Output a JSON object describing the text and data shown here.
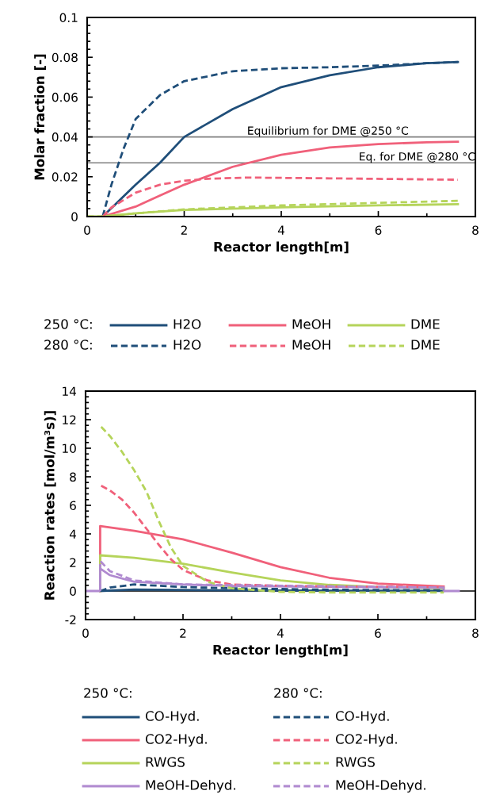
{
  "chart_data": [
    {
      "type": "line",
      "xlabel": "Reactor length[m]",
      "ylabel": "Molar fraction [-]",
      "xlim": [
        0,
        8
      ],
      "xticks": [
        0,
        2,
        4,
        6,
        8
      ],
      "ylim": [
        0,
        0.1
      ],
      "yticks": [
        0,
        0.02,
        0.04,
        0.06,
        0.08,
        0.1
      ],
      "grid": false,
      "legend": "bottom",
      "annotations": [
        "250 °C:",
        "280 °C:"
      ],
      "ref_lines": [
        {
          "axis": "y",
          "value": 0.04,
          "label": "Equilibrium for DME @250 °C",
          "color": "#808080"
        },
        {
          "axis": "y",
          "value": 0.027,
          "label": "Eq. for DME @280 °C",
          "color": "#808080"
        }
      ],
      "series": [
        {
          "name": "H2O",
          "color": "#1f4e79",
          "line_style": "solid",
          "x": [
            0.32,
            1,
            1.5,
            2,
            3,
            4,
            5,
            6,
            7,
            7.64
          ],
          "values": [
            0,
            0.016,
            0.027,
            0.04,
            0.054,
            0.065,
            0.071,
            0.075,
            0.077,
            0.0776
          ]
        },
        {
          "name": "MeOH",
          "color": "#f0607a",
          "line_style": "solid",
          "x": [
            0.32,
            1,
            1.5,
            2,
            3,
            4,
            5,
            6,
            7,
            7.64
          ],
          "values": [
            0,
            0.005,
            0.0106,
            0.016,
            0.025,
            0.031,
            0.0347,
            0.0364,
            0.0373,
            0.0376
          ]
        },
        {
          "name": "DME",
          "color": "#b5d45a",
          "line_style": "solid",
          "x": [
            0,
            0.32,
            1,
            2,
            4,
            6,
            7.64
          ],
          "values": [
            0,
            0,
            0.0016,
            0.0033,
            0.0046,
            0.0056,
            0.0062
          ]
        },
        {
          "name": "H2O",
          "color": "#1f4e79",
          "line_style": "dashed",
          "x": [
            0.32,
            0.5,
            0.75,
            1,
            1.5,
            2,
            3,
            4,
            5,
            6,
            7,
            7.64
          ],
          "values": [
            0,
            0.016,
            0.034,
            0.049,
            0.061,
            0.068,
            0.073,
            0.0745,
            0.075,
            0.0758,
            0.077,
            0.0776
          ]
        },
        {
          "name": "MeOH",
          "color": "#f0607a",
          "line_style": "dashed",
          "x": [
            0.32,
            0.5,
            1,
            1.5,
            2,
            2.5,
            3.3,
            5,
            7.64
          ],
          "values": [
            0,
            0.0046,
            0.012,
            0.016,
            0.018,
            0.019,
            0.0196,
            0.0192,
            0.0185
          ]
        },
        {
          "name": "DME",
          "color": "#b5d45a",
          "line_style": "dashed",
          "x": [
            0,
            0.32,
            1,
            2,
            4,
            6,
            7.64
          ],
          "values": [
            0,
            0,
            0.0016,
            0.0036,
            0.0056,
            0.0069,
            0.0079
          ]
        }
      ]
    },
    {
      "type": "line",
      "xlabel": "Reactor length[m]",
      "ylabel": "Reaction rates [mol/m³s)]",
      "xlim": [
        0,
        8
      ],
      "xticks": [
        0,
        2,
        4,
        6,
        8
      ],
      "ylim": [
        -2,
        14
      ],
      "yticks": [
        -2,
        0,
        2,
        4,
        6,
        8,
        10,
        12,
        14
      ],
      "grid": false,
      "legend": "bottom",
      "annotations": [
        "250 °C:",
        "280 °C:"
      ],
      "ref_lines": [
        {
          "axis": "y",
          "value": 0,
          "color": "#000000"
        }
      ],
      "series": [
        {
          "name": "CO-Hyd.",
          "color": "#1f4e79",
          "line_style": "solid",
          "x": [
            0.3,
            1,
            3,
            5,
            7.35
          ],
          "values": [
            0,
            0.1,
            0.05,
            0.02,
            0.01
          ]
        },
        {
          "name": "CO2-Hyd.",
          "color": "#f0607a",
          "line_style": "solid",
          "x": [
            0.3,
            0.3,
            1,
            2,
            3,
            4,
            5,
            6,
            7.35
          ],
          "values": [
            0,
            4.55,
            4.21,
            3.62,
            2.69,
            1.67,
            0.93,
            0.52,
            0.32
          ]
        },
        {
          "name": "RWGS",
          "color": "#b5d45a",
          "line_style": "solid",
          "x": [
            0.3,
            0.3,
            1,
            2,
            3,
            4,
            5,
            6,
            7.35
          ],
          "values": [
            0,
            2.5,
            2.32,
            1.91,
            1.3,
            0.74,
            0.43,
            0.28,
            0.19
          ]
        },
        {
          "name": "MeOH-Dehyd.",
          "color": "#b08ad0",
          "line_style": "solid",
          "x": [
            0,
            0.3,
            0.3,
            0.5,
            1,
            2,
            3,
            5,
            7.35,
            7.35,
            7.66
          ],
          "values": [
            0,
            0,
            1.58,
            1.11,
            0.65,
            0.46,
            0.35,
            0.28,
            0.24,
            0,
            0
          ]
        },
        {
          "name": "CO-Hyd.",
          "color": "#1f4e79",
          "line_style": "dashed",
          "x": [
            0.3,
            0.5,
            1,
            1.5,
            2,
            3,
            5,
            7.35
          ],
          "values": [
            0,
            0.24,
            0.46,
            0.37,
            0.28,
            0.19,
            0.09,
            0.05
          ]
        },
        {
          "name": "CO2-Hyd.",
          "color": "#f0607a",
          "line_style": "dashed",
          "x": [
            0.32,
            0.5,
            0.75,
            1,
            1.25,
            1.5,
            1.75,
            2,
            2.5,
            3,
            4,
            5,
            7.35
          ],
          "values": [
            7.37,
            7.05,
            6.4,
            5.47,
            4.36,
            3.25,
            2.23,
            1.48,
            0.74,
            0.46,
            0.37,
            0.32,
            0.28
          ]
        },
        {
          "name": "RWGS",
          "color": "#b5d45a",
          "line_style": "dashed",
          "x": [
            0.32,
            0.5,
            0.75,
            1,
            1.25,
            1.5,
            1.75,
            2,
            2.5,
            3,
            4,
            5,
            7.35
          ],
          "values": [
            11.5,
            10.85,
            9.74,
            8.44,
            6.96,
            4.92,
            3.06,
            1.76,
            0.65,
            0.19,
            -0.06,
            -0.1,
            -0.1
          ]
        },
        {
          "name": "MeOH-Dehyd.",
          "color": "#b08ad0",
          "line_style": "dashed",
          "x": [
            0.3,
            0.3,
            0.5,
            1,
            2,
            4,
            7.35
          ],
          "values": [
            0,
            2.1,
            1.39,
            0.74,
            0.46,
            0.37,
            0.24
          ]
        }
      ]
    }
  ]
}
